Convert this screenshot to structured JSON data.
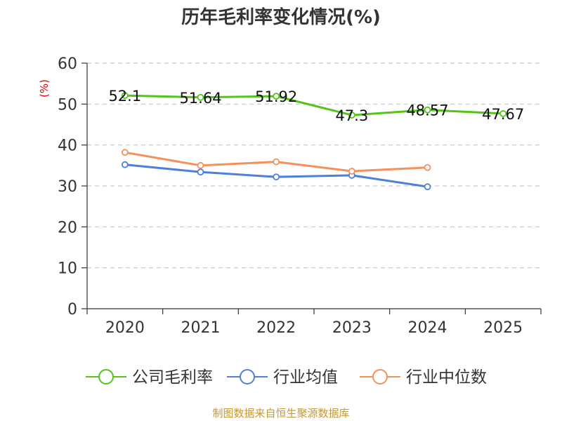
{
  "chart_data": {
    "type": "line",
    "title": "历年毛利率变化情况(%)",
    "ylabel": "(%)",
    "xlabel": "",
    "categories": [
      "2020",
      "2021",
      "2022",
      "2023",
      "2024",
      "2025"
    ],
    "ylim": [
      0,
      60
    ],
    "yticks": [
      0,
      10,
      20,
      30,
      40,
      50,
      60
    ],
    "grid": true,
    "legend_position": "bottom",
    "series": [
      {
        "name": "公司毛利率",
        "color": "#52c41a",
        "show_labels": true,
        "values": [
          52.1,
          51.64,
          51.92,
          47.3,
          48.57,
          47.67
        ]
      },
      {
        "name": "行业均值",
        "color": "#4e7fdc",
        "show_labels": false,
        "values": [
          35.2,
          33.4,
          32.2,
          32.6,
          29.8,
          null
        ]
      },
      {
        "name": "行业中位数",
        "color": "#f5905a",
        "show_labels": false,
        "values": [
          38.2,
          35.0,
          35.9,
          33.6,
          34.5,
          null
        ]
      }
    ],
    "source": "制图数据来自恒生聚源数据库"
  }
}
